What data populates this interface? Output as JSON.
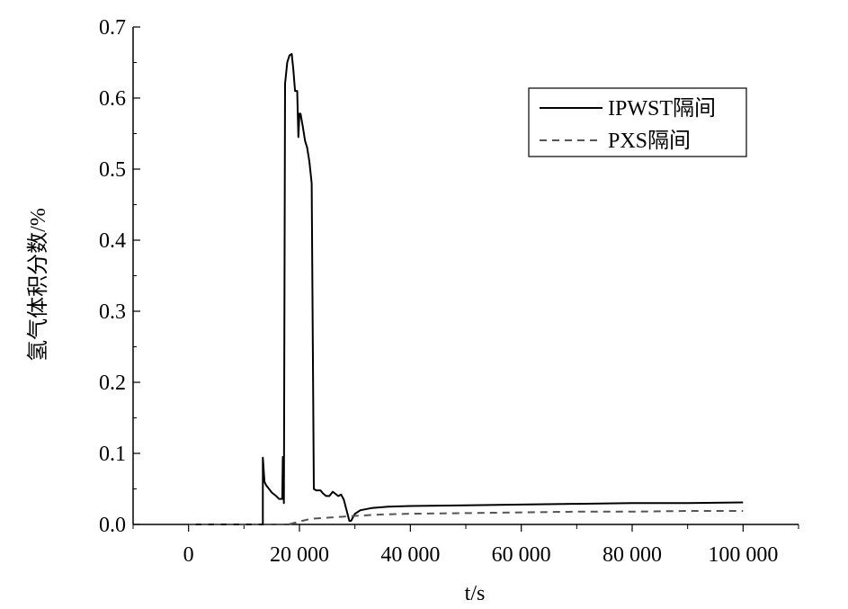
{
  "chart_data": {
    "type": "line",
    "xlabel": "t/s",
    "ylabel": "氢气体积分数/%",
    "xlim": [
      -10000,
      110000
    ],
    "ylim": [
      0,
      0.7
    ],
    "x_ticks": [
      0,
      20000,
      40000,
      60000,
      80000,
      100000
    ],
    "x_tick_labels": [
      "0",
      "20 000",
      "40 000",
      "60 000",
      "80 000",
      "100 000"
    ],
    "y_ticks": [
      0,
      0.1,
      0.2,
      0.3,
      0.4,
      0.5,
      0.6,
      0.7
    ],
    "y_tick_labels": [
      "0.0",
      "0.1",
      "0.2",
      "0.3",
      "0.4",
      "0.5",
      "0.6",
      "0.7"
    ],
    "grid": false,
    "legend_position": "top-right",
    "series": [
      {
        "name": "IPWST隔间",
        "style": "solid",
        "color": "#000000",
        "points": [
          [
            0,
            0
          ],
          [
            13400,
            0
          ],
          [
            13400,
            0.094
          ],
          [
            13700,
            0.06
          ],
          [
            14000,
            0.055
          ],
          [
            14300,
            0.052
          ],
          [
            15000,
            0.045
          ],
          [
            15800,
            0.04
          ],
          [
            16300,
            0.036
          ],
          [
            16900,
            0.036
          ],
          [
            17000,
            0.095
          ],
          [
            17200,
            0.03
          ],
          [
            17400,
            0.62
          ],
          [
            17800,
            0.65
          ],
          [
            18200,
            0.66
          ],
          [
            18600,
            0.662
          ],
          [
            18900,
            0.64
          ],
          [
            19200,
            0.61
          ],
          [
            19600,
            0.61
          ],
          [
            19800,
            0.545
          ],
          [
            20000,
            0.578
          ],
          [
            20200,
            0.578
          ],
          [
            20600,
            0.56
          ],
          [
            21000,
            0.54
          ],
          [
            21400,
            0.53
          ],
          [
            21800,
            0.51
          ],
          [
            22200,
            0.48
          ],
          [
            22600,
            0.05
          ],
          [
            23000,
            0.048
          ],
          [
            23800,
            0.048
          ],
          [
            24200,
            0.044
          ],
          [
            24800,
            0.04
          ],
          [
            25400,
            0.04
          ],
          [
            26000,
            0.046
          ],
          [
            26500,
            0.043
          ],
          [
            27000,
            0.04
          ],
          [
            27500,
            0.042
          ],
          [
            28000,
            0.035
          ],
          [
            28500,
            0.02
          ],
          [
            29000,
            0.005
          ],
          [
            29300,
            0.005
          ],
          [
            30000,
            0.015
          ],
          [
            31000,
            0.02
          ],
          [
            33000,
            0.023
          ],
          [
            36000,
            0.025
          ],
          [
            40000,
            0.026
          ],
          [
            50000,
            0.027
          ],
          [
            60000,
            0.028
          ],
          [
            70000,
            0.029
          ],
          [
            80000,
            0.03
          ],
          [
            90000,
            0.03
          ],
          [
            100000,
            0.031
          ]
        ]
      },
      {
        "name": "PXS隔间",
        "style": "dashed",
        "color": "#555555",
        "points": [
          [
            0,
            0
          ],
          [
            18000,
            0
          ],
          [
            20000,
            0.004
          ],
          [
            22000,
            0.008
          ],
          [
            26000,
            0.01
          ],
          [
            30000,
            0.012
          ],
          [
            35000,
            0.014
          ],
          [
            40000,
            0.015
          ],
          [
            50000,
            0.016
          ],
          [
            60000,
            0.017
          ],
          [
            70000,
            0.018
          ],
          [
            80000,
            0.018
          ],
          [
            90000,
            0.019
          ],
          [
            100000,
            0.019
          ]
        ]
      }
    ]
  }
}
